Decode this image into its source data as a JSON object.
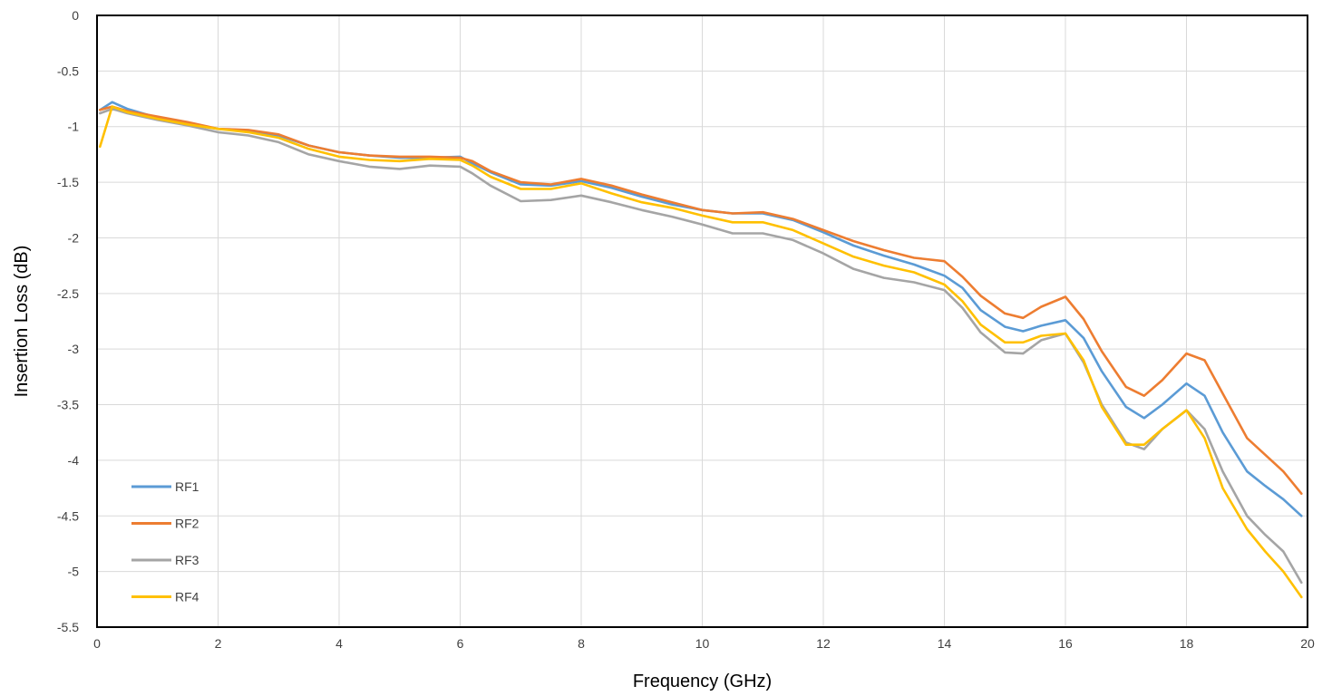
{
  "chart_data": {
    "type": "line",
    "title": "",
    "xlabel": "Frequency (GHz)",
    "ylabel": "Insertion Loss (dB)",
    "xlim": [
      0,
      20
    ],
    "ylim": [
      -5.5,
      0
    ],
    "x_ticks": [
      0,
      2,
      4,
      6,
      8,
      10,
      12,
      14,
      16,
      18,
      20
    ],
    "y_ticks": [
      0,
      -0.5,
      -1,
      -1.5,
      -2,
      -2.5,
      -3,
      -3.5,
      -4,
      -4.5,
      -5,
      -5.5
    ],
    "grid": true,
    "legend_position": "bottom-left",
    "x": [
      0.05,
      0.25,
      0.5,
      1,
      1.5,
      2,
      2.5,
      3,
      3.5,
      4,
      4.5,
      5,
      5.5,
      6,
      6.2,
      6.5,
      7,
      7.5,
      8,
      8.5,
      9,
      9.5,
      10,
      10.5,
      11,
      11.5,
      12,
      12.5,
      13,
      13.5,
      14,
      14.3,
      14.6,
      15,
      15.3,
      15.6,
      16,
      16.3,
      16.6,
      17,
      17.3,
      17.6,
      18,
      18.3,
      18.6,
      19,
      19.3,
      19.6,
      19.9
    ],
    "series": [
      {
        "name": "RF1",
        "color": "#5b9bd5",
        "values": [
          -0.85,
          -0.78,
          -0.84,
          -0.92,
          -0.97,
          -1.02,
          -1.04,
          -1.08,
          -1.17,
          -1.23,
          -1.26,
          -1.28,
          -1.28,
          -1.27,
          -1.33,
          -1.41,
          -1.52,
          -1.53,
          -1.49,
          -1.55,
          -1.63,
          -1.7,
          -1.75,
          -1.78,
          -1.78,
          -1.84,
          -1.95,
          -2.07,
          -2.16,
          -2.24,
          -2.34,
          -2.45,
          -2.65,
          -2.8,
          -2.84,
          -2.79,
          -2.74,
          -2.9,
          -3.2,
          -3.52,
          -3.62,
          -3.5,
          -3.31,
          -3.42,
          -3.75,
          -4.1,
          -4.23,
          -4.35,
          -4.5
        ]
      },
      {
        "name": "RF2",
        "color": "#ed7d31",
        "values": [
          -0.85,
          -0.82,
          -0.86,
          -0.91,
          -0.96,
          -1.02,
          -1.03,
          -1.07,
          -1.17,
          -1.23,
          -1.26,
          -1.27,
          -1.27,
          -1.28,
          -1.31,
          -1.4,
          -1.5,
          -1.52,
          -1.47,
          -1.53,
          -1.61,
          -1.68,
          -1.75,
          -1.78,
          -1.77,
          -1.83,
          -1.93,
          -2.03,
          -2.11,
          -2.18,
          -2.21,
          -2.35,
          -2.52,
          -2.68,
          -2.72,
          -2.62,
          -2.53,
          -2.73,
          -3.02,
          -3.34,
          -3.42,
          -3.28,
          -3.04,
          -3.1,
          -3.4,
          -3.8,
          -3.95,
          -4.1,
          -4.3
        ]
      },
      {
        "name": "RF3",
        "color": "#a5a5a5",
        "values": [
          -0.88,
          -0.84,
          -0.88,
          -0.94,
          -0.99,
          -1.05,
          -1.08,
          -1.14,
          -1.25,
          -1.31,
          -1.36,
          -1.38,
          -1.35,
          -1.36,
          -1.42,
          -1.53,
          -1.67,
          -1.66,
          -1.62,
          -1.68,
          -1.75,
          -1.81,
          -1.88,
          -1.96,
          -1.96,
          -2.02,
          -2.14,
          -2.28,
          -2.36,
          -2.4,
          -2.47,
          -2.63,
          -2.85,
          -3.03,
          -3.04,
          -2.92,
          -2.86,
          -3.12,
          -3.5,
          -3.84,
          -3.9,
          -3.72,
          -3.55,
          -3.72,
          -4.1,
          -4.5,
          -4.67,
          -4.82,
          -5.1
        ]
      },
      {
        "name": "RF4",
        "color": "#ffc000",
        "values": [
          -1.18,
          -0.82,
          -0.87,
          -0.93,
          -0.98,
          -1.02,
          -1.05,
          -1.1,
          -1.2,
          -1.27,
          -1.3,
          -1.31,
          -1.29,
          -1.3,
          -1.35,
          -1.45,
          -1.56,
          -1.56,
          -1.51,
          -1.6,
          -1.68,
          -1.73,
          -1.8,
          -1.86,
          -1.86,
          -1.93,
          -2.05,
          -2.17,
          -2.25,
          -2.31,
          -2.42,
          -2.57,
          -2.78,
          -2.94,
          -2.94,
          -2.88,
          -2.86,
          -3.1,
          -3.52,
          -3.86,
          -3.86,
          -3.72,
          -3.55,
          -3.8,
          -4.25,
          -4.62,
          -4.82,
          -5.0,
          -5.23
        ]
      }
    ]
  }
}
